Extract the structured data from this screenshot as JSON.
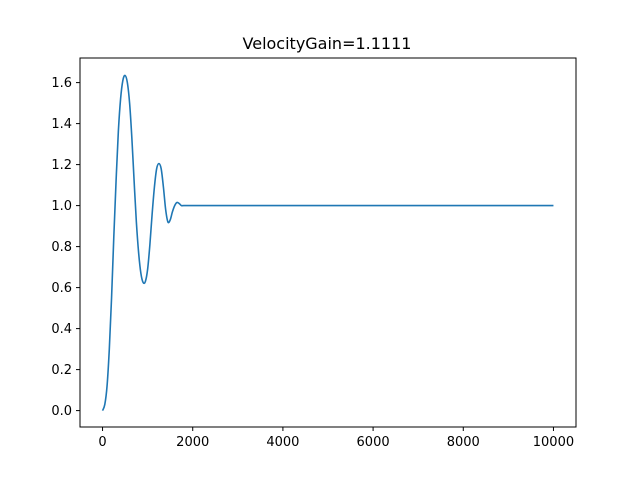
{
  "chart_data": {
    "type": "line",
    "title": "VelocityGain=1.1111",
    "xlabel": "",
    "ylabel": "",
    "xlim": [
      -500,
      10500
    ],
    "ylim": [
      -0.08,
      1.72
    ],
    "xticks": [
      0,
      2000,
      4000,
      6000,
      8000,
      10000
    ],
    "xtick_labels": [
      "0",
      "2000",
      "4000",
      "6000",
      "8000",
      "10000"
    ],
    "yticks": [
      0.0,
      0.2,
      0.4,
      0.6,
      0.8,
      1.0,
      1.2,
      1.4,
      1.6
    ],
    "ytick_labels": [
      "0.0",
      "0.2",
      "0.4",
      "0.6",
      "0.8",
      "1.0",
      "1.2",
      "1.4",
      "1.6"
    ],
    "grid": false,
    "legend": "none",
    "series": [
      {
        "color": "#1f77b4",
        "x": [
          0,
          50,
          100,
          150,
          200,
          250,
          300,
          350,
          400,
          450,
          500,
          550,
          600,
          650,
          700,
          750,
          800,
          850,
          900,
          950,
          1000,
          1050,
          1100,
          1150,
          1200,
          1250,
          1300,
          1350,
          1400,
          1450,
          1500,
          1550,
          1600,
          1650,
          1700,
          1750,
          1800,
          2000,
          3000,
          4000,
          5000,
          6000,
          7000,
          8000,
          9000,
          10000
        ],
        "y": [
          0.0,
          0.03,
          0.12,
          0.3,
          0.55,
          0.85,
          1.12,
          1.36,
          1.52,
          1.61,
          1.635,
          1.6,
          1.5,
          1.33,
          1.12,
          0.92,
          0.77,
          0.67,
          0.625,
          0.63,
          0.69,
          0.81,
          0.96,
          1.09,
          1.18,
          1.205,
          1.18,
          1.09,
          0.98,
          0.92,
          0.93,
          0.97,
          1.0,
          1.015,
          1.01,
          1.0,
          1.0,
          1.0,
          1.0,
          1.0,
          1.0,
          1.0,
          1.0,
          1.0,
          1.0,
          1.0
        ]
      }
    ]
  }
}
